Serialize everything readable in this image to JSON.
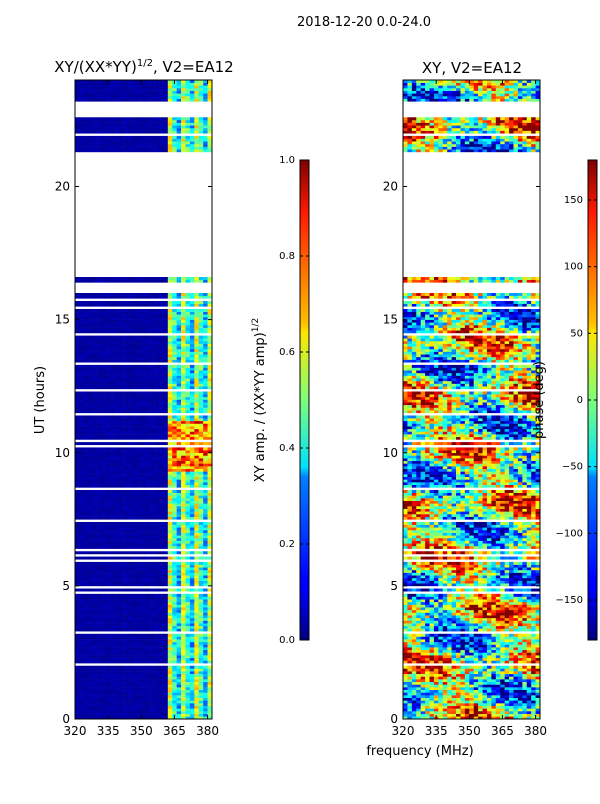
{
  "figure": {
    "suptitle": "2018-12-20 0.0-24.0",
    "shared_xlabel": "frequency (MHz)"
  },
  "chart_data": [
    {
      "type": "heatmap",
      "title": "XY/(XX*YY)",
      "title_power": "1/2",
      "title_suffix": ", V2=EA12",
      "xlabel": "",
      "ylabel": "UT (hours)",
      "xlim": [
        320,
        382
      ],
      "ylim": [
        0,
        24
      ],
      "x_ticks": [
        "320",
        "335",
        "350",
        "365",
        "380"
      ],
      "x_tick_values": [
        320,
        335,
        350,
        365,
        380
      ],
      "y_ticks": [
        "0",
        "5",
        "10",
        "15",
        "20"
      ],
      "y_tick_values": [
        0,
        5,
        10,
        15,
        20
      ],
      "colormap": "jet",
      "colorbar": {
        "label": "XY amp. / (XX*YY amp)",
        "label_power": "1/2",
        "range": [
          0.0,
          1.0
        ],
        "ticks": [
          "0.0",
          "0.2",
          "0.4",
          "0.6",
          "0.8",
          "1.0"
        ],
        "tick_values": [
          0.0,
          0.2,
          0.4,
          0.6,
          0.8,
          1.0
        ]
      },
      "data_gaps_ut": [
        [
          16.6,
          21.3
        ],
        [
          22.6,
          23.2
        ]
      ],
      "description_values": {
        "background_level": 0.0,
        "active_channels_mhz": [
          362,
          382
        ],
        "peak_level": 0.9
      }
    },
    {
      "type": "heatmap",
      "title": "XY, V2=EA12",
      "xlabel": "frequency (MHz)",
      "ylabel": "",
      "xlim": [
        320,
        382
      ],
      "ylim": [
        0,
        24
      ],
      "x_ticks": [
        "320",
        "335",
        "350",
        "365",
        "380"
      ],
      "x_tick_values": [
        320,
        335,
        350,
        365,
        380
      ],
      "y_ticks": [
        "0",
        "5",
        "10",
        "15",
        "20"
      ],
      "y_tick_values": [
        0,
        5,
        10,
        15,
        20
      ],
      "colormap": "jet",
      "colorbar": {
        "label": "phase (deg)",
        "range": [
          -180,
          180
        ],
        "ticks": [
          "−150",
          "−100",
          "−50",
          "0",
          "50",
          "100",
          "150"
        ],
        "tick_values": [
          -150,
          -100,
          -50,
          0,
          50,
          100,
          150
        ]
      },
      "data_gaps_ut": [
        [
          16.6,
          21.3
        ],
        [
          22.6,
          23.2
        ]
      ]
    }
  ],
  "colors": {
    "jet_low": "#00007f",
    "jet_high": "#7f0000",
    "background": "#ffffff",
    "axis": "#000000"
  }
}
